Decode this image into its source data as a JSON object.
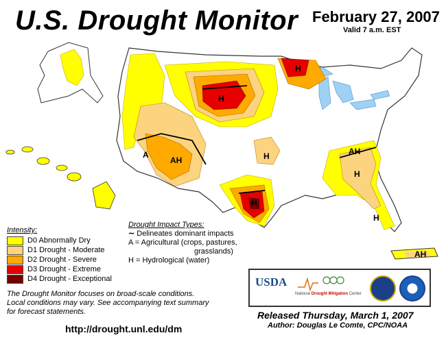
{
  "header": {
    "title": "U.S. Drought Monitor",
    "date": "February 27, 2007",
    "valid": "Valid 7 a.m. EST"
  },
  "legend": {
    "heading": "Intensity:",
    "items": [
      {
        "label": "D0 Abnormally Dry",
        "color": "#ffff00"
      },
      {
        "label": "D1 Drought - Moderate",
        "color": "#fcd37f"
      },
      {
        "label": "D2 Drought - Severe",
        "color": "#ffaa00"
      },
      {
        "label": "D3 Drought - Extreme",
        "color": "#e60000"
      },
      {
        "label": "D4 Drought - Exceptional",
        "color": "#730000"
      }
    ]
  },
  "impacts": {
    "heading": "Drought Impact Types:",
    "line1": "Delineates dominant impacts",
    "line2": "A = Agricultural (crops, pastures,",
    "line2b": "grasslands)",
    "line3": "H = Hydrological (water)"
  },
  "map_labels": {
    "h_north_mn": "H",
    "h_wyoming": "H",
    "a_california": "A",
    "ah_arizona": "AH",
    "h_kansas": "H",
    "ah_kentucky": "AH",
    "h_carolina": "H",
    "h_texas": "H",
    "h_florida": "H",
    "ah_puerto_rico": "AH"
  },
  "note": {
    "line1": "The Drought Monitor focuses on broad-scale conditions.",
    "line2": "Local conditions may vary.  See accompanying text summary",
    "line3": "for forecast statements."
  },
  "url": "http://drought.unl.edu/dm",
  "logos": {
    "usda": "USDA",
    "ndmc_prefix": "National",
    "ndmc_name": "Drought Mitigation",
    "ndmc_suffix": "Center"
  },
  "footer": {
    "released": "Released Thursday, March 1, 2007",
    "author": "Author: Douglas Le Comte, CPC/NOAA"
  }
}
